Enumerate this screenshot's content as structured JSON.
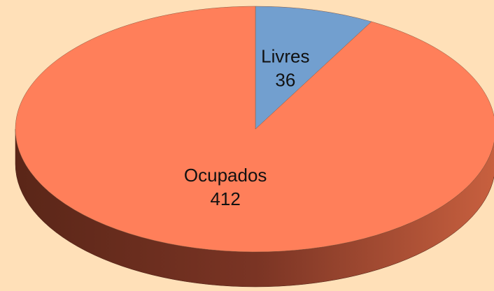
{
  "chart_data": {
    "type": "pie",
    "categories": [
      "Livres",
      "Ocupados"
    ],
    "values": [
      36,
      412
    ],
    "colors": [
      "#729fcf",
      "#ff7f5a"
    ]
  }
}
